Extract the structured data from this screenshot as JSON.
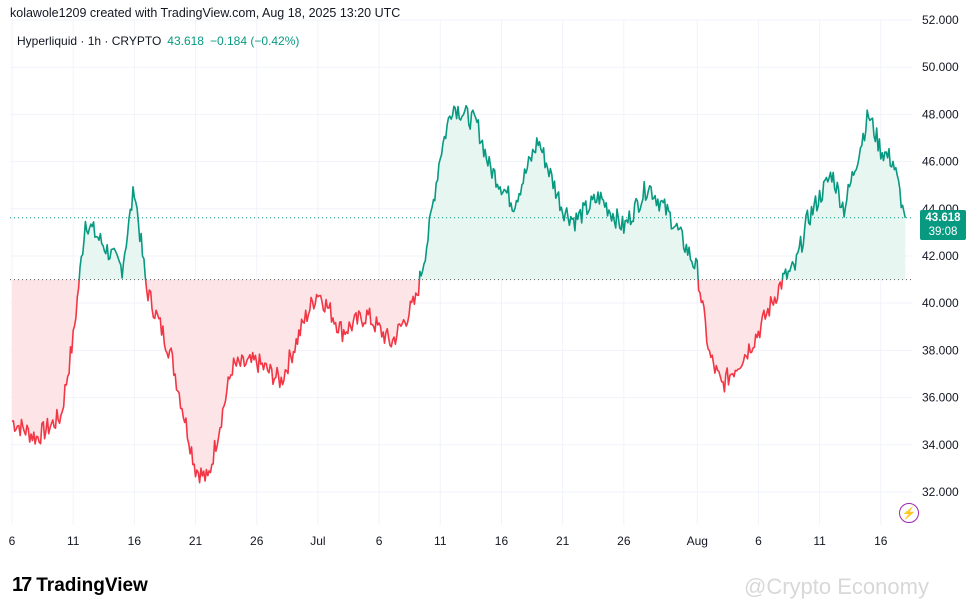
{
  "header": {
    "author_line": "kolawole1209 created with TradingView.com, Aug 18, 2025 13:20 UTC"
  },
  "legend": {
    "symbol": "Hyperliquid · 1h · CRYPTO",
    "last": "43.618",
    "change": "−0.184 (−0.42%)"
  },
  "price_tag": {
    "price": "43.618",
    "countdown": "39:08"
  },
  "footer": {
    "logo_mark": "17",
    "logo_word": "TradingView",
    "watermark": "@Crypto Economy"
  },
  "colors": {
    "up": "#089981",
    "down": "#f23645",
    "up_fill": "#e6f5f1",
    "down_fill": "#fde2e4",
    "grid": "#f0f3fa"
  },
  "chart_data": {
    "type": "area",
    "title": "",
    "xlabel": "",
    "ylabel": "",
    "ylim": [
      30.6,
      52.0
    ],
    "baseline": 41.0,
    "last_price": 43.618,
    "y_ticks": [
      "32.000",
      "34.000",
      "36.000",
      "38.000",
      "40.000",
      "42.000",
      "44.000",
      "46.000",
      "48.000",
      "50.000",
      "52.000"
    ],
    "x_ticks": [
      "6",
      "11",
      "16",
      "21",
      "26",
      "Jul",
      "6",
      "11",
      "16",
      "21",
      "26",
      "Aug",
      "6",
      "11",
      "16"
    ],
    "x": [
      "Jun 6",
      "Jun 8",
      "Jun 10",
      "Jun 11",
      "Jun 12",
      "Jun 14",
      "Jun 15",
      "Jun 16",
      "Jun 17",
      "Jun 19",
      "Jun 21",
      "Jun 22",
      "Jun 24",
      "Jun 26",
      "Jun 28",
      "Jun 30",
      "Jul 1",
      "Jul 3",
      "Jul 5",
      "Jul 7",
      "Jul 9",
      "Jul 10",
      "Jul 11",
      "Jul 12",
      "Jul 14",
      "Jul 15",
      "Jul 17",
      "Jul 19",
      "Jul 21",
      "Jul 22",
      "Jul 24",
      "Jul 26",
      "Jul 28",
      "Jul 30",
      "Aug 1",
      "Aug 2",
      "Aug 3",
      "Aug 5",
      "Aug 6",
      "Aug 8",
      "Aug 9",
      "Aug 10",
      "Aug 12",
      "Aug 13",
      "Aug 15",
      "Aug 16",
      "Aug 17",
      "Aug 18"
    ],
    "series": [
      {
        "values": [
          35.0,
          34.3,
          35.2,
          38.5,
          43.5,
          42.1,
          41.5,
          44.9,
          40.6,
          37.8,
          33.0,
          32.5,
          37.3,
          37.5,
          36.7,
          39.4,
          40.5,
          38.8,
          39.5,
          38.3,
          40.1,
          42.8,
          46.3,
          48.4,
          47.6,
          45.8,
          44.2,
          46.9,
          44.0,
          43.5,
          44.5,
          43.2,
          45.0,
          43.5,
          41.4,
          37.8,
          36.5,
          37.9,
          38.8,
          41.0,
          41.5,
          43.5,
          45.5,
          44.0,
          48.0,
          46.5,
          46.0,
          43.618
        ]
      }
    ]
  }
}
